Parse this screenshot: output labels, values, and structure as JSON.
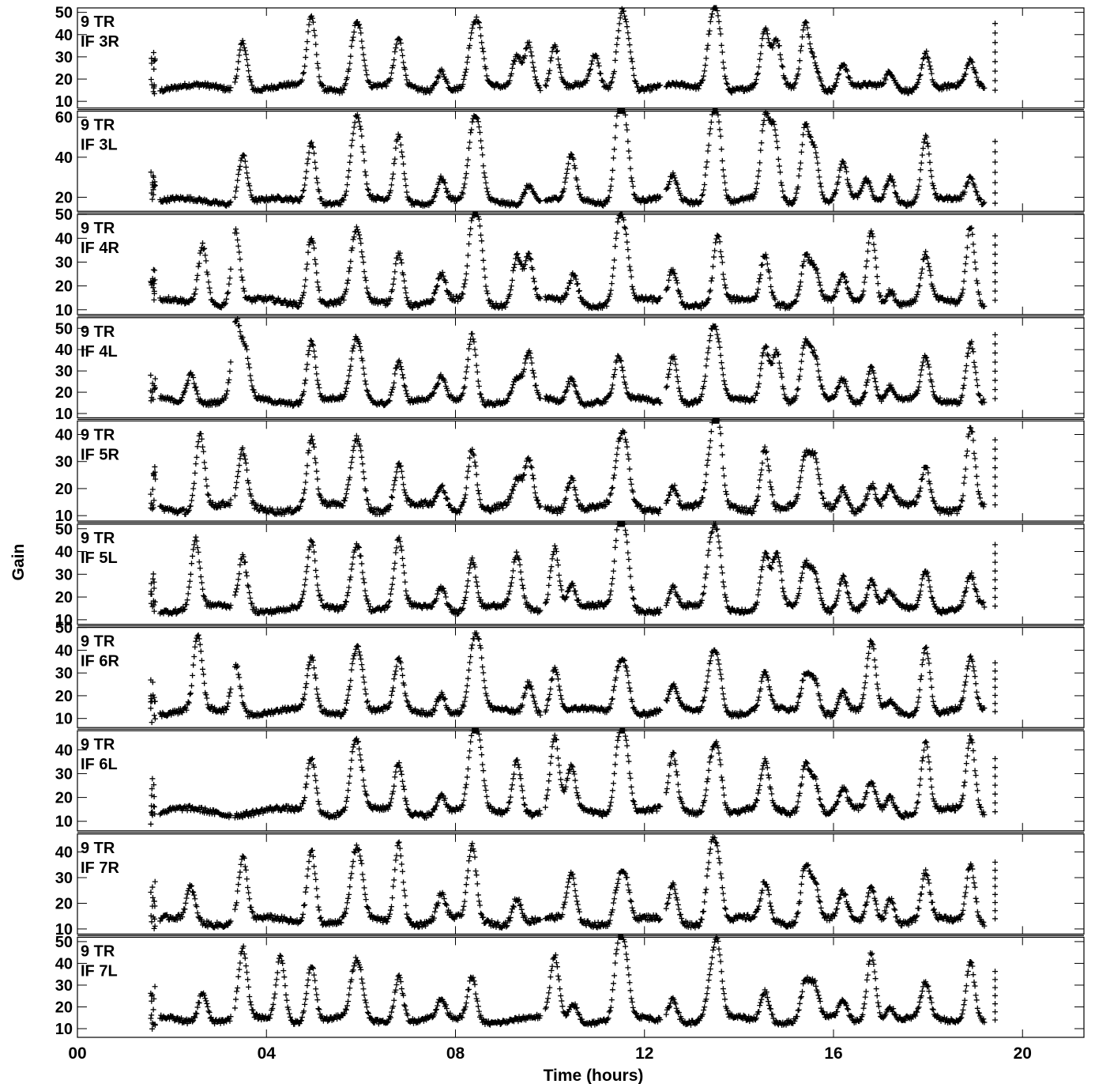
{
  "chart_data": {
    "type": "scatter",
    "title": "",
    "xlabel": "Time (hours)",
    "ylabel": "Gain",
    "xlim": [
      0,
      21.3
    ],
    "x_tick_values": [
      0,
      4,
      8,
      12,
      16,
      20
    ],
    "x_tick_labels": [
      "00",
      "04",
      "08",
      "12",
      "16",
      "20"
    ],
    "marker": "+",
    "color": "#000000",
    "panels": [
      {
        "antenna": "9 TR",
        "if_label": "IF 3R",
        "ylim": [
          7,
          52
        ],
        "yticks": [
          10,
          20,
          30,
          40,
          50
        ],
        "baseline": 16,
        "extra": [],
        "peaks": [
          [
            3.5,
            38
          ],
          [
            4.95,
            48
          ],
          [
            5.85,
            35
          ],
          [
            5.98,
            36
          ],
          [
            6.8,
            37
          ],
          [
            7.7,
            25
          ],
          [
            8.35,
            36
          ],
          [
            8.5,
            38
          ],
          [
            9.3,
            31
          ],
          [
            9.55,
            37
          ],
          [
            10.1,
            35
          ],
          [
            10.95,
            30
          ],
          [
            11.5,
            46
          ],
          [
            11.65,
            35
          ],
          [
            13.4,
            39
          ],
          [
            13.55,
            46
          ],
          [
            14.55,
            41
          ],
          [
            14.8,
            36
          ],
          [
            15.4,
            45
          ],
          [
            15.6,
            28
          ],
          [
            16.2,
            27
          ],
          [
            17.2,
            23
          ],
          [
            17.95,
            33
          ],
          [
            18.9,
            27
          ]
        ],
        "tail": [
          15,
          45
        ]
      },
      {
        "antenna": "9 TR",
        "if_label": "IF 3L",
        "ylim": [
          13,
          63
        ],
        "yticks": [
          20,
          40,
          60
        ],
        "baseline": 18,
        "extra": [],
        "peaks": [
          [
            3.5,
            42
          ],
          [
            4.95,
            48
          ],
          [
            5.85,
            45
          ],
          [
            5.98,
            46
          ],
          [
            6.8,
            51
          ],
          [
            7.7,
            30
          ],
          [
            8.35,
            48
          ],
          [
            8.5,
            46
          ],
          [
            9.55,
            27
          ],
          [
            10.45,
            40
          ],
          [
            11.45,
            62
          ],
          [
            11.6,
            50
          ],
          [
            12.6,
            30
          ],
          [
            13.4,
            47
          ],
          [
            13.55,
            57
          ],
          [
            14.55,
            57
          ],
          [
            14.75,
            52
          ],
          [
            15.4,
            56
          ],
          [
            15.6,
            43
          ],
          [
            16.2,
            36
          ],
          [
            16.7,
            28
          ],
          [
            17.2,
            31
          ],
          [
            17.95,
            50
          ],
          [
            18.9,
            30
          ]
        ],
        "tail": [
          17,
          53
        ]
      },
      {
        "antenna": "9 TR",
        "if_label": "IF 4R",
        "ylim": [
          8,
          50
        ],
        "yticks": [
          10,
          20,
          30,
          40,
          50
        ],
        "baseline": 13,
        "extra": [],
        "peaks": [
          [
            2.65,
            38
          ],
          [
            3.35,
            43
          ],
          [
            4.95,
            42
          ],
          [
            5.85,
            33
          ],
          [
            5.98,
            31
          ],
          [
            6.8,
            35
          ],
          [
            7.7,
            24
          ],
          [
            8.35,
            41
          ],
          [
            8.5,
            41
          ],
          [
            9.3,
            33
          ],
          [
            9.55,
            32
          ],
          [
            10.5,
            25
          ],
          [
            11.45,
            43
          ],
          [
            11.6,
            35
          ],
          [
            12.6,
            27
          ],
          [
            13.55,
            41
          ],
          [
            14.55,
            33
          ],
          [
            15.4,
            32
          ],
          [
            15.6,
            27
          ],
          [
            16.2,
            23
          ],
          [
            16.8,
            44
          ],
          [
            17.2,
            19
          ],
          [
            17.95,
            32
          ],
          [
            18.9,
            46
          ]
        ],
        "tail": [
          14,
          41
        ]
      },
      {
        "antenna": "9 TR",
        "if_label": "IF 4L",
        "ylim": [
          8,
          55
        ],
        "yticks": [
          10,
          20,
          30,
          40,
          50
        ],
        "baseline": 16,
        "extra": [],
        "peaks": [
          [
            2.4,
            30
          ],
          [
            3.35,
            51
          ],
          [
            3.55,
            38
          ],
          [
            4.95,
            45
          ],
          [
            5.85,
            35
          ],
          [
            5.98,
            34
          ],
          [
            6.8,
            36
          ],
          [
            7.7,
            26
          ],
          [
            8.35,
            48
          ],
          [
            9.3,
            26
          ],
          [
            9.55,
            37
          ],
          [
            10.45,
            27
          ],
          [
            11.45,
            36
          ],
          [
            12.6,
            38
          ],
          [
            13.4,
            41
          ],
          [
            13.55,
            39
          ],
          [
            14.55,
            42
          ],
          [
            14.8,
            40
          ],
          [
            15.4,
            42
          ],
          [
            15.6,
            35
          ],
          [
            16.2,
            26
          ],
          [
            16.8,
            33
          ],
          [
            17.2,
            23
          ],
          [
            17.95,
            36
          ],
          [
            18.9,
            45
          ]
        ],
        "tail": [
          17,
          47
        ]
      },
      {
        "antenna": "9 TR",
        "if_label": "IF 5R",
        "ylim": [
          8,
          45
        ],
        "yticks": [
          10,
          20,
          30,
          40
        ],
        "baseline": 13,
        "extra": [],
        "peaks": [
          [
            2.6,
            41
          ],
          [
            3.5,
            33
          ],
          [
            4.95,
            38
          ],
          [
            5.85,
            30
          ],
          [
            5.98,
            30
          ],
          [
            6.8,
            29
          ],
          [
            7.7,
            20
          ],
          [
            8.35,
            36
          ],
          [
            9.3,
            22
          ],
          [
            9.55,
            30
          ],
          [
            10.45,
            25
          ],
          [
            11.45,
            30
          ],
          [
            11.6,
            33
          ],
          [
            12.6,
            22
          ],
          [
            13.4,
            30
          ],
          [
            13.55,
            44
          ],
          [
            14.55,
            36
          ],
          [
            15.4,
            30
          ],
          [
            15.6,
            30
          ],
          [
            16.2,
            21
          ],
          [
            16.8,
            22
          ],
          [
            17.2,
            20
          ],
          [
            17.95,
            28
          ],
          [
            18.9,
            43
          ]
        ],
        "tail": [
          14,
          38
        ]
      },
      {
        "antenna": "9 TR",
        "if_label": "IF 5L",
        "ylim": [
          8,
          52
        ],
        "yticks": [
          10,
          20,
          30,
          40,
          50
        ],
        "baseline": 15,
        "extra": [],
        "peaks": [
          [
            2.5,
            45
          ],
          [
            3.5,
            38
          ],
          [
            4.95,
            43
          ],
          [
            5.85,
            34
          ],
          [
            5.98,
            34
          ],
          [
            6.8,
            45
          ],
          [
            7.7,
            25
          ],
          [
            8.35,
            37
          ],
          [
            9.3,
            38
          ],
          [
            10.1,
            43
          ],
          [
            10.45,
            26
          ],
          [
            11.45,
            47
          ],
          [
            11.6,
            42
          ],
          [
            12.6,
            24
          ],
          [
            13.4,
            39
          ],
          [
            13.55,
            42
          ],
          [
            14.55,
            39
          ],
          [
            14.8,
            38
          ],
          [
            15.4,
            33
          ],
          [
            15.6,
            30
          ],
          [
            16.2,
            30
          ],
          [
            16.8,
            26
          ],
          [
            17.2,
            21
          ],
          [
            17.95,
            33
          ],
          [
            18.9,
            29
          ]
        ],
        "tail": [
          16,
          43
        ]
      },
      {
        "antenna": "9 TR",
        "if_label": "IF 6R",
        "ylim": [
          6,
          50
        ],
        "yticks": [
          10,
          20,
          30,
          40,
          50
        ],
        "baseline": 13,
        "extra": [],
        "peaks": [
          [
            2.55,
            46
          ],
          [
            3.35,
            35
          ],
          [
            4.95,
            36
          ],
          [
            5.85,
            32
          ],
          [
            5.98,
            32
          ],
          [
            6.8,
            35
          ],
          [
            7.7,
            22
          ],
          [
            8.35,
            35
          ],
          [
            8.5,
            38
          ],
          [
            9.55,
            27
          ],
          [
            10.1,
            32
          ],
          [
            11.45,
            30
          ],
          [
            11.6,
            31
          ],
          [
            12.6,
            24
          ],
          [
            13.4,
            32
          ],
          [
            13.55,
            34
          ],
          [
            14.55,
            30
          ],
          [
            15.4,
            29
          ],
          [
            15.6,
            28
          ],
          [
            16.2,
            22
          ],
          [
            16.8,
            43
          ],
          [
            17.2,
            17
          ],
          [
            17.95,
            43
          ],
          [
            18.9,
            36
          ]
        ],
        "tail": [
          13,
          38
        ]
      },
      {
        "antenna": "9 TR",
        "if_label": "IF 6L",
        "ylim": [
          6,
          48
        ],
        "yticks": [
          10,
          20,
          30,
          40
        ],
        "baseline": 14,
        "extra": [],
        "peaks": [
          [
            4.95,
            37
          ],
          [
            5.85,
            37
          ],
          [
            5.98,
            30
          ],
          [
            6.8,
            34
          ],
          [
            7.7,
            22
          ],
          [
            8.35,
            39
          ],
          [
            8.5,
            39
          ],
          [
            9.3,
            37
          ],
          [
            10.1,
            45
          ],
          [
            10.45,
            32
          ],
          [
            11.45,
            40
          ],
          [
            11.6,
            41
          ],
          [
            12.6,
            37
          ],
          [
            13.4,
            32
          ],
          [
            13.55,
            38
          ],
          [
            14.55,
            34
          ],
          [
            15.4,
            34
          ],
          [
            15.6,
            28
          ],
          [
            16.2,
            23
          ],
          [
            16.8,
            26
          ],
          [
            17.2,
            21
          ],
          [
            17.95,
            43
          ],
          [
            18.9,
            45
          ]
        ],
        "tail": [
          14,
          40
        ]
      },
      {
        "antenna": "9 TR",
        "if_label": "IF 7R",
        "ylim": [
          8,
          47
        ],
        "yticks": [
          10,
          20,
          30,
          40
        ],
        "baseline": 13,
        "extra": [],
        "peaks": [
          [
            2.4,
            26
          ],
          [
            3.5,
            38
          ],
          [
            4.95,
            42
          ],
          [
            5.85,
            31
          ],
          [
            5.98,
            31
          ],
          [
            6.8,
            44
          ],
          [
            7.7,
            23
          ],
          [
            8.35,
            42
          ],
          [
            9.3,
            23
          ],
          [
            10.45,
            31
          ],
          [
            11.45,
            27
          ],
          [
            11.6,
            28
          ],
          [
            12.6,
            27
          ],
          [
            13.4,
            37
          ],
          [
            13.55,
            36
          ],
          [
            14.55,
            28
          ],
          [
            15.4,
            35
          ],
          [
            15.6,
            28
          ],
          [
            16.2,
            23
          ],
          [
            16.8,
            27
          ],
          [
            17.2,
            23
          ],
          [
            17.95,
            31
          ],
          [
            18.9,
            36
          ]
        ],
        "tail": [
          14,
          36
        ]
      },
      {
        "antenna": "9 TR",
        "if_label": "IF 7L",
        "ylim": [
          6,
          52
        ],
        "yticks": [
          10,
          20,
          30,
          40,
          50
        ],
        "baseline": 14,
        "extra": [],
        "peaks": [
          [
            2.65,
            28
          ],
          [
            3.5,
            46
          ],
          [
            4.3,
            44
          ],
          [
            4.95,
            40
          ],
          [
            5.85,
            32
          ],
          [
            5.98,
            31
          ],
          [
            6.8,
            35
          ],
          [
            7.7,
            22
          ],
          [
            8.35,
            34
          ],
          [
            10.1,
            43
          ],
          [
            10.5,
            22
          ],
          [
            11.45,
            46
          ],
          [
            11.6,
            37
          ],
          [
            12.6,
            25
          ],
          [
            13.4,
            30
          ],
          [
            13.55,
            45
          ],
          [
            14.55,
            28
          ],
          [
            15.4,
            31
          ],
          [
            15.6,
            29
          ],
          [
            16.2,
            22
          ],
          [
            16.8,
            46
          ],
          [
            17.2,
            20
          ],
          [
            17.95,
            30
          ],
          [
            18.9,
            42
          ]
        ],
        "tail": [
          14,
          40
        ]
      }
    ]
  }
}
